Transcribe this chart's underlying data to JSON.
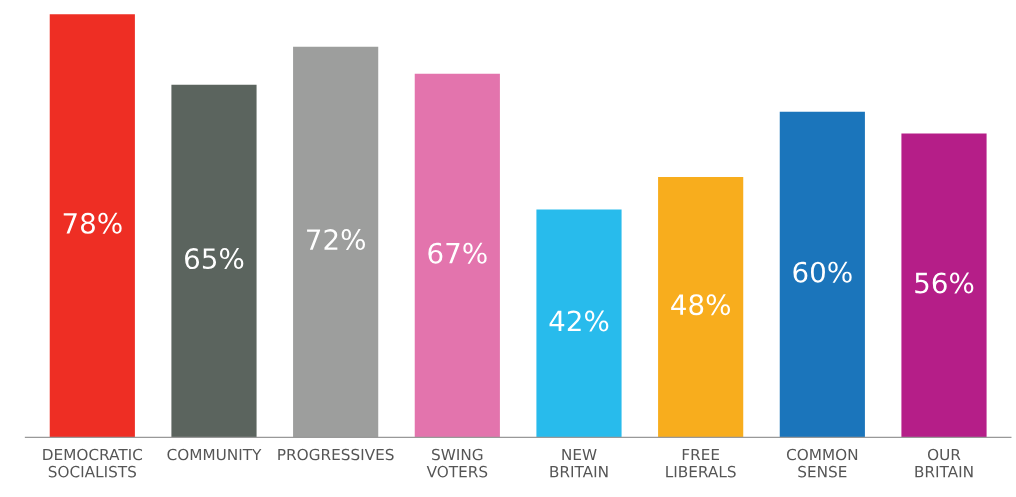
{
  "chart_data": {
    "type": "bar",
    "categories": [
      "DEMOCRATIC\nSOCIALISTS",
      "COMMUNITY",
      "PROGRESSIVES",
      "SWING\nVOTERS",
      "NEW\nBRITAIN",
      "FREE\nLIBERALS",
      "COMMON\nSENSE",
      "OUR\nBRITAIN"
    ],
    "values": [
      78,
      65,
      72,
      67,
      42,
      48,
      60,
      56
    ],
    "colors": [
      "#ee2e24",
      "#5b645e",
      "#9d9e9d",
      "#e374ad",
      "#28bbec",
      "#f8ad1d",
      "#1b75bb",
      "#b51e88"
    ],
    "value_labels": [
      "78%",
      "65%",
      "72%",
      "67%",
      "42%",
      "48%",
      "60%",
      "56%"
    ],
    "grid": false,
    "legend": false
  }
}
